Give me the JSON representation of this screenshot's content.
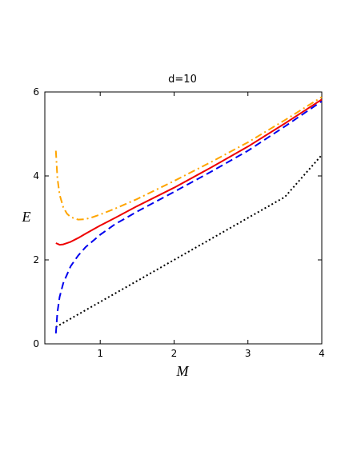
{
  "chart_data": {
    "type": "line",
    "title": "d=10",
    "xlabel": "M",
    "ylabel": "E",
    "xlim": [
      0.25,
      4.0
    ],
    "ylim": [
      0,
      6
    ],
    "xticks": [
      1,
      2,
      3,
      4
    ],
    "yticks": [
      0,
      2,
      4,
      6
    ],
    "grid": false,
    "series": [
      {
        "style": "dotted",
        "color": "#000000",
        "x": [
          0.4,
          1.0,
          1.5,
          2.0,
          2.5,
          3.0,
          3.5,
          4.0
        ],
        "y": [
          0.4,
          1.0,
          1.5,
          2.0,
          2.5,
          3.0,
          3.5,
          4.5
        ]
      },
      {
        "style": "dashed",
        "color": "#0000ee",
        "x": [
          0.4,
          0.42,
          0.45,
          0.5,
          0.6,
          0.7,
          0.8,
          1.0,
          1.2,
          1.5,
          2.0,
          2.5,
          3.0,
          3.5,
          4.0
        ],
        "y": [
          0.25,
          0.75,
          1.12,
          1.45,
          1.85,
          2.1,
          2.3,
          2.6,
          2.85,
          3.15,
          3.62,
          4.1,
          4.6,
          5.18,
          5.78
        ]
      },
      {
        "style": "solid",
        "color": "#ee0000",
        "x": [
          0.4,
          0.45,
          0.5,
          0.6,
          0.7,
          0.8,
          1.0,
          1.2,
          1.5,
          2.0,
          2.5,
          3.0,
          3.5,
          4.0
        ],
        "y": [
          2.4,
          2.36,
          2.37,
          2.43,
          2.52,
          2.62,
          2.82,
          3.0,
          3.28,
          3.72,
          4.2,
          4.7,
          5.25,
          5.82
        ]
      },
      {
        "style": "dashdot",
        "color": "#ffa500",
        "x": [
          0.4,
          0.42,
          0.45,
          0.5,
          0.55,
          0.6,
          0.7,
          0.8,
          0.9,
          1.0,
          1.2,
          1.5,
          2.0,
          2.5,
          3.0,
          3.5,
          4.0
        ],
        "y": [
          4.6,
          3.95,
          3.55,
          3.25,
          3.1,
          3.02,
          2.96,
          2.97,
          3.02,
          3.08,
          3.22,
          3.45,
          3.88,
          4.33,
          4.8,
          5.33,
          5.88
        ]
      }
    ]
  }
}
